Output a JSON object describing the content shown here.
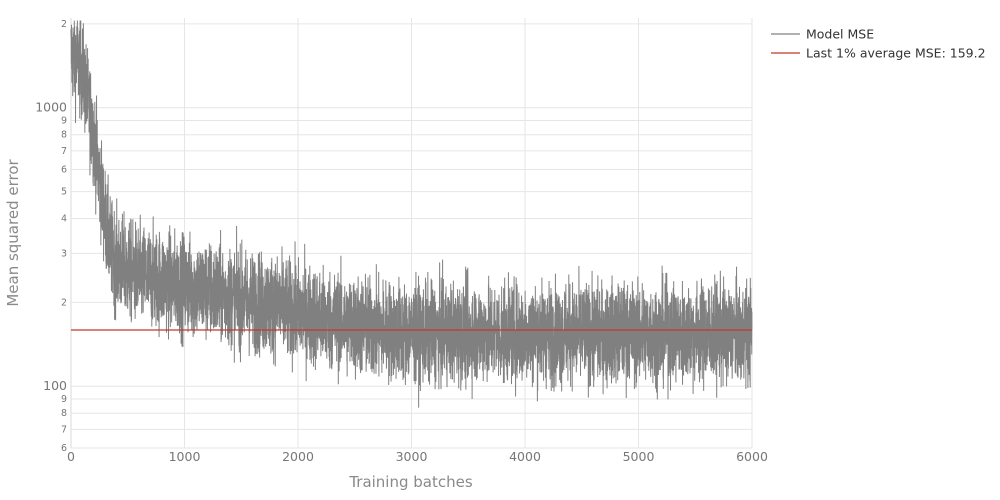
{
  "chart_data": {
    "type": "line",
    "xlabel": "Training batches",
    "ylabel": "Mean squared error",
    "y_scale": "log",
    "xlim": [
      0,
      6000
    ],
    "ylim": [
      60,
      2100
    ],
    "grid": true,
    "legend_position": "top-right, outside plot",
    "x_ticks": [
      0,
      1000,
      2000,
      3000,
      4000,
      5000,
      6000
    ],
    "x_tick_labels": [
      "0",
      "1000",
      "2000",
      "3000",
      "4000",
      "5000",
      "6000"
    ],
    "y_major_ticks": [
      100,
      1000
    ],
    "y_major_labels": [
      "100",
      "1000"
    ],
    "y_minor_ticks": [
      60,
      70,
      80,
      90,
      200,
      300,
      400,
      500,
      600,
      700,
      800,
      900,
      2000
    ],
    "y_minor_labels": [
      "6",
      "7",
      "8",
      "9",
      "2",
      "3",
      "4",
      "5",
      "6",
      "7",
      "8",
      "9",
      "2"
    ],
    "series": [
      {
        "name": "Model MSE",
        "color": "#808080",
        "x": [
          0,
          50,
          100,
          150,
          200,
          250,
          300,
          350,
          400,
          500,
          600,
          700,
          800,
          900,
          1000,
          1200,
          1400,
          1600,
          1800,
          2000,
          2200,
          2400,
          2600,
          2800,
          3000,
          3500,
          4000,
          4500,
          5000,
          5500,
          6000
        ],
        "y": [
          1550,
          1500,
          1350,
          1050,
          800,
          560,
          400,
          310,
          280,
          260,
          250,
          245,
          240,
          235,
          230,
          220,
          210,
          200,
          195,
          185,
          175,
          168,
          162,
          158,
          155,
          155,
          155,
          155,
          155,
          155,
          155
        ],
        "noise_band_log10": 0.09,
        "points": 6000
      },
      {
        "name": "Last 1% average MSE: 159.2",
        "color": "#c0392b",
        "x": [
          0,
          6000
        ],
        "y": [
          159.2,
          159.2
        ]
      }
    ]
  }
}
